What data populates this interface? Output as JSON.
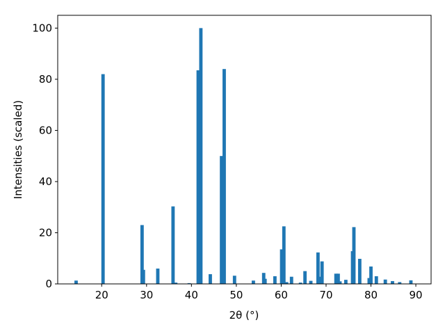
{
  "chart_data": {
    "type": "bar",
    "x_label": "2θ (°)",
    "y_label": "Intensities (scaled)",
    "x": [
      14.3,
      20.3,
      29.0,
      29.3,
      32.5,
      35.9,
      36.5,
      39.5,
      41.5,
      42.1,
      44.2,
      46.7,
      47.3,
      49.6,
      53.8,
      56.1,
      56.4,
      58.6,
      60.1,
      60.6,
      61.2,
      62.3,
      64.3,
      65.3,
      66.6,
      68.2,
      68.6,
      69.1,
      72.2,
      72.7,
      73.1,
      74.4,
      75.9,
      76.2,
      77.5,
      79.6,
      80.0,
      81.2,
      83.2,
      84.8,
      86.4,
      88.9
    ],
    "values": [
      1.3,
      82,
      23,
      5.5,
      6,
      30.3,
      0.5,
      0.3,
      83.5,
      100,
      3.8,
      50,
      84,
      3.2,
      1.3,
      4.3,
      2,
      3,
      13.5,
      22.5,
      0.7,
      2.8,
      0.5,
      5,
      1.2,
      12.3,
      2.8,
      8.8,
      4,
      4,
      1,
      1.6,
      12.8,
      22.2,
      9.8,
      2.3,
      6.8,
      3,
      1.7,
      1.1,
      0.7,
      1.4
    ],
    "color": "#1f77b4",
    "xlim": [
      10.2,
      93.4
    ],
    "xticks": [
      20,
      30,
      40,
      50,
      60,
      70,
      80,
      90
    ],
    "ylim": [
      0,
      105
    ],
    "yticks": [
      0,
      20,
      40,
      60,
      80,
      100
    ]
  }
}
